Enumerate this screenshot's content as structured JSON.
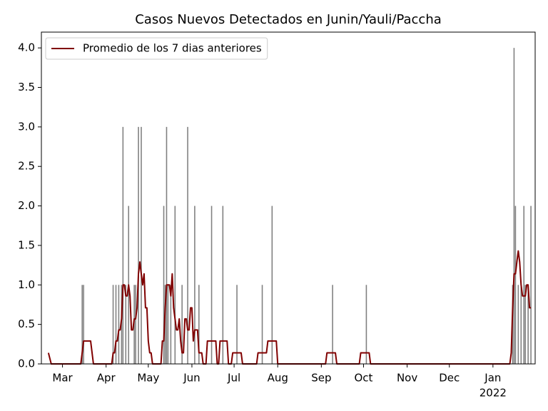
{
  "chart_data": {
    "type": "bar",
    "title": "Casos Nuevos Detectados en Junin/Yauli/Paccha",
    "xlim": [
      44,
      395
    ],
    "xticks": [
      {
        "value": 59,
        "label": "Mar"
      },
      {
        "value": 90,
        "label": "Apr"
      },
      {
        "value": 120,
        "label": "May"
      },
      {
        "value": 151,
        "label": "Jun"
      },
      {
        "value": 181,
        "label": "Jul"
      },
      {
        "value": 212,
        "label": "Aug"
      },
      {
        "value": 243,
        "label": "Sep"
      },
      {
        "value": 273,
        "label": "Oct"
      },
      {
        "value": 304,
        "label": "Nov"
      },
      {
        "value": 334,
        "label": "Dec"
      },
      {
        "value": 365,
        "label": "Jan"
      }
    ],
    "x_year_label": "2022",
    "ylim": [
      0,
      4.2
    ],
    "yticks": [
      {
        "value": 0,
        "label": "0.0"
      },
      0.5,
      {
        "value": 1,
        "label": "1.0"
      },
      1.5,
      {
        "value": 2,
        "label": "2.0"
      },
      2.5,
      {
        "value": 3,
        "label": "3.0"
      },
      3.5,
      {
        "value": 4,
        "label": "4.0"
      }
    ],
    "bar_color": "#808080",
    "x": [
      73,
      74,
      95,
      97,
      99,
      101,
      102,
      104,
      106,
      110,
      111,
      113,
      115,
      131,
      132,
      133,
      134,
      136,
      139,
      144,
      148,
      153,
      156,
      165,
      173,
      183,
      201,
      208,
      251,
      275,
      379,
      380,
      381,
      383,
      385,
      387,
      388,
      390,
      392
    ],
    "values": [
      1,
      1,
      1,
      1,
      1,
      1,
      3,
      1,
      2,
      1,
      1,
      3,
      3,
      2,
      1,
      3,
      1,
      1,
      2,
      1,
      3,
      2,
      1,
      2,
      2,
      1,
      1,
      2,
      1,
      1,
      1,
      4,
      2,
      1,
      1,
      2,
      1,
      1,
      2
    ],
    "legend": "upper left",
    "series": [
      {
        "name": "Promedio de los 7 dias anteriores",
        "type": "line",
        "color": "#800000",
        "x": [
          49,
          51,
          72,
          73,
          74,
          79,
          81,
          94,
          95,
          96,
          97,
          98,
          99,
          100,
          101,
          102,
          103,
          104,
          105,
          106,
          107,
          108,
          109,
          110,
          111,
          112,
          113,
          114,
          115,
          116,
          117,
          118,
          119,
          120,
          121,
          122,
          123,
          129,
          130,
          131,
          132,
          133,
          134,
          135,
          136,
          137,
          138,
          139,
          140,
          141,
          142,
          143,
          144,
          145,
          146,
          147,
          148,
          149,
          150,
          151,
          152,
          153,
          155,
          156,
          158,
          159,
          161,
          162,
          168,
          169,
          170,
          171,
          176,
          177,
          179,
          180,
          186,
          187,
          197,
          198,
          204,
          205,
          211,
          212,
          246,
          247,
          253,
          254,
          270,
          271,
          277,
          278,
          377,
          378,
          379,
          380,
          381,
          382,
          383,
          384,
          385,
          386,
          388,
          389,
          390,
          391,
          392
        ],
        "values": [
          0.14,
          0,
          0,
          0.14,
          0.29,
          0.29,
          0,
          0,
          0.14,
          0.14,
          0.29,
          0.29,
          0.43,
          0.43,
          0.57,
          1.0,
          1.0,
          0.86,
          0.86,
          1.0,
          0.86,
          0.43,
          0.43,
          0.57,
          0.57,
          0.71,
          1.14,
          1.29,
          1.14,
          1.0,
          1.14,
          0.71,
          0.71,
          0.29,
          0.14,
          0.14,
          0,
          0,
          0.29,
          0.29,
          0.71,
          1.0,
          1.0,
          1.0,
          0.86,
          1.14,
          0.71,
          0.57,
          0.43,
          0.43,
          0.57,
          0.29,
          0.14,
          0.14,
          0.57,
          0.57,
          0.43,
          0.43,
          0.71,
          0.71,
          0.29,
          0.43,
          0.43,
          0.14,
          0.14,
          0,
          0,
          0.29,
          0.29,
          0,
          0,
          0.29,
          0.29,
          0,
          0,
          0.14,
          0.14,
          0,
          0,
          0.14,
          0.14,
          0.29,
          0.29,
          0,
          0,
          0.14,
          0.14,
          0,
          0,
          0.14,
          0.14,
          0,
          0,
          0.14,
          0.71,
          1.14,
          1.14,
          1.29,
          1.43,
          1.29,
          1.0,
          0.86,
          0.86,
          1.0,
          1.0,
          0.71,
          0.71
        ]
      }
    ]
  }
}
